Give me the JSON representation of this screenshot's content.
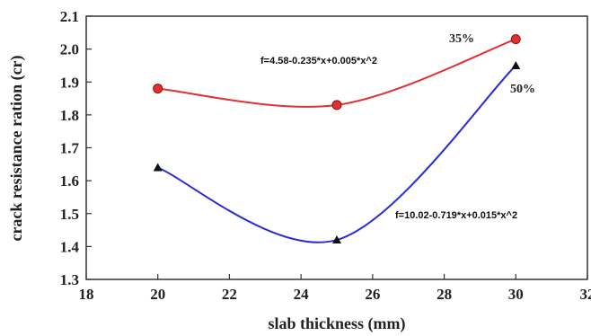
{
  "chart_data": {
    "type": "scatter",
    "xlabel": "slab thickness (mm)",
    "ylabel": "crack resistance ration (cr)",
    "xlim": [
      18,
      32
    ],
    "ylim": [
      1.3,
      2.1
    ],
    "xticks": [
      "18",
      "20",
      "22",
      "24",
      "26",
      "28",
      "30",
      "32"
    ],
    "yticks": [
      "1.3",
      "1.4",
      "1.5",
      "1.6",
      "1.7",
      "1.8",
      "1.9",
      "2.0",
      "2.1"
    ],
    "grid": false,
    "series": [
      {
        "name": "35%",
        "color": "#e03030",
        "marker": "circle",
        "x": [
          20,
          25,
          30
        ],
        "y": [
          1.88,
          1.83,
          2.03
        ],
        "fit": "f=4.58-0.235*x+0.005*x^2",
        "fit_coeffs": [
          4.58,
          -0.235,
          0.005
        ]
      },
      {
        "name": "50%",
        "color": "#2a2ad8",
        "marker": "triangle",
        "x": [
          20,
          25,
          30
        ],
        "y": [
          1.64,
          1.42,
          1.95
        ],
        "fit": "f=10.02-0.719*x+0.015*x^2",
        "fit_coeffs": [
          10.02,
          -0.719,
          0.015
        ]
      }
    ]
  }
}
